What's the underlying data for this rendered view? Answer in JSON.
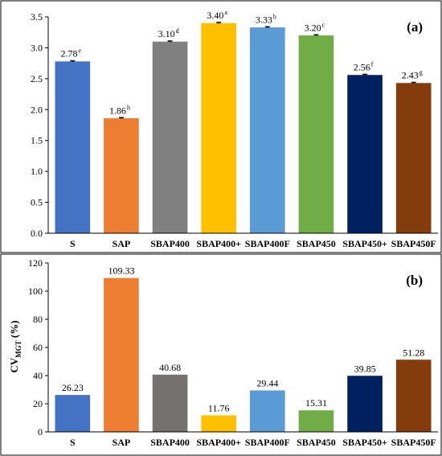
{
  "chart_data": [
    {
      "type": "bar",
      "panel_label": "(a)",
      "categories": [
        "S",
        "SAP",
        "SBAP400",
        "SBAP400+",
        "SBAP400F",
        "SBAP450",
        "SBAP450+",
        "SBAP450F"
      ],
      "values": [
        2.78,
        1.86,
        3.1,
        3.4,
        3.33,
        3.2,
        2.56,
        2.43
      ],
      "value_labels": [
        "2.78",
        "1.86",
        "3.10",
        "3.40",
        "3.33",
        "3.20",
        "2.56",
        "2.43"
      ],
      "significance_letters": [
        "e",
        "h",
        "d",
        "a",
        "b",
        "c",
        "f",
        "g"
      ],
      "error_bars": [
        0.01,
        0.01,
        0.01,
        0.01,
        0.01,
        0.01,
        0.01,
        0.01
      ],
      "colors": [
        "#4472c4",
        "#ed7d31",
        "#808080",
        "#ffc000",
        "#5b9bd5",
        "#70ad47",
        "#002060",
        "#843c0c"
      ],
      "ylim": [
        0,
        3.5
      ],
      "yticks": [
        "0.0",
        "0.5",
        "1.0",
        "1.5",
        "2.0",
        "2.5",
        "3.0",
        "3.5"
      ],
      "ytick_values": [
        0,
        0.5,
        1.0,
        1.5,
        2.0,
        2.5,
        3.0,
        3.5
      ],
      "ylabel": "",
      "xlabel": "",
      "grid": false
    },
    {
      "type": "bar",
      "panel_label": "(b)",
      "categories": [
        "S",
        "SAP",
        "SBAP400",
        "SBAP400+",
        "SBAP400F",
        "SBAP450",
        "SBAP450+",
        "SBAP450F"
      ],
      "values": [
        26.23,
        109.33,
        40.68,
        11.76,
        29.44,
        15.31,
        39.85,
        51.28
      ],
      "value_labels": [
        "26.23",
        "109.33",
        "40.68",
        "11.76",
        "29.44",
        "15.31",
        "39.85",
        "51.28"
      ],
      "colors": [
        "#4472c4",
        "#ed7d31",
        "#767171",
        "#ffc000",
        "#5b9bd5",
        "#70ad47",
        "#002060",
        "#843c0c"
      ],
      "ylim": [
        0,
        120
      ],
      "yticks": [
        "0",
        "20",
        "40",
        "60",
        "80",
        "100",
        "120"
      ],
      "ytick_values": [
        0,
        20,
        40,
        60,
        80,
        100,
        120
      ],
      "ylabel_main": "CV",
      "ylabel_sub": "MGT",
      "ylabel_suffix": " (%)",
      "xlabel": "",
      "grid": false
    }
  ]
}
